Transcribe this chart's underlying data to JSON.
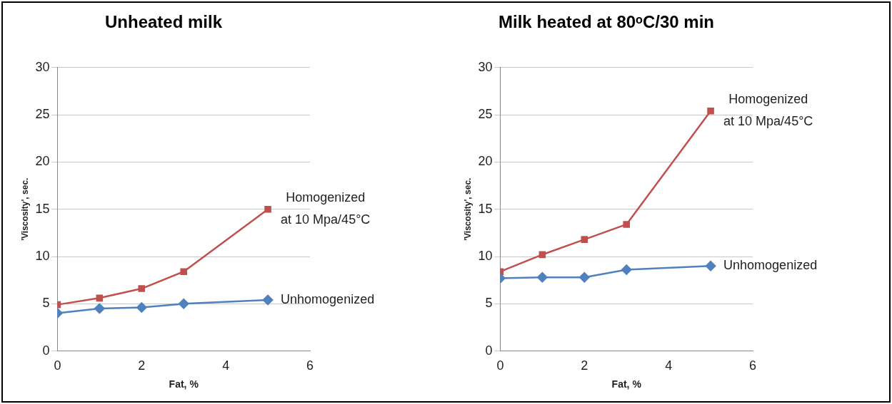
{
  "chart_data": [
    {
      "type": "line",
      "title": "Unheated milk",
      "xlabel": "Fat, %",
      "ylabel": "'Viscosity', sec.",
      "x": [
        0,
        1,
        2,
        3,
        5
      ],
      "xlim": [
        0,
        6
      ],
      "xticks": [
        0,
        2,
        4,
        6
      ],
      "ylim": [
        0,
        30
      ],
      "yticks": [
        0,
        5,
        10,
        15,
        20,
        25,
        30
      ],
      "grid": "y",
      "legend": false,
      "series": [
        {
          "name": "Unhomogenized",
          "color": "#4f81bd",
          "marker": "diamond",
          "values": [
            4.0,
            4.5,
            4.6,
            5.0,
            5.4
          ]
        },
        {
          "name": "Homogenized at 10 Mpa/45°C",
          "color": "#c0504d",
          "marker": "square",
          "values": [
            4.9,
            5.6,
            6.6,
            8.4,
            15.0
          ]
        }
      ]
    },
    {
      "type": "line",
      "title": "Milk heated at 80ᵒC/30 min",
      "xlabel": "Fat, %",
      "ylabel": "'Viscosity', sec.",
      "x": [
        0,
        1,
        2,
        3,
        5
      ],
      "xlim": [
        0,
        6
      ],
      "xticks": [
        0,
        2,
        4,
        6
      ],
      "ylim": [
        0,
        30
      ],
      "yticks": [
        0,
        5,
        10,
        15,
        20,
        25,
        30
      ],
      "grid": "y",
      "legend": false,
      "series": [
        {
          "name": "Unhomogenized",
          "color": "#4f81bd",
          "marker": "diamond",
          "values": [
            7.7,
            7.8,
            7.8,
            8.6,
            9.0
          ]
        },
        {
          "name": "Homogenized at 10 Mpa/45°C",
          "color": "#c0504d",
          "marker": "square",
          "values": [
            8.4,
            10.2,
            11.8,
            13.4,
            25.4
          ]
        }
      ]
    }
  ]
}
